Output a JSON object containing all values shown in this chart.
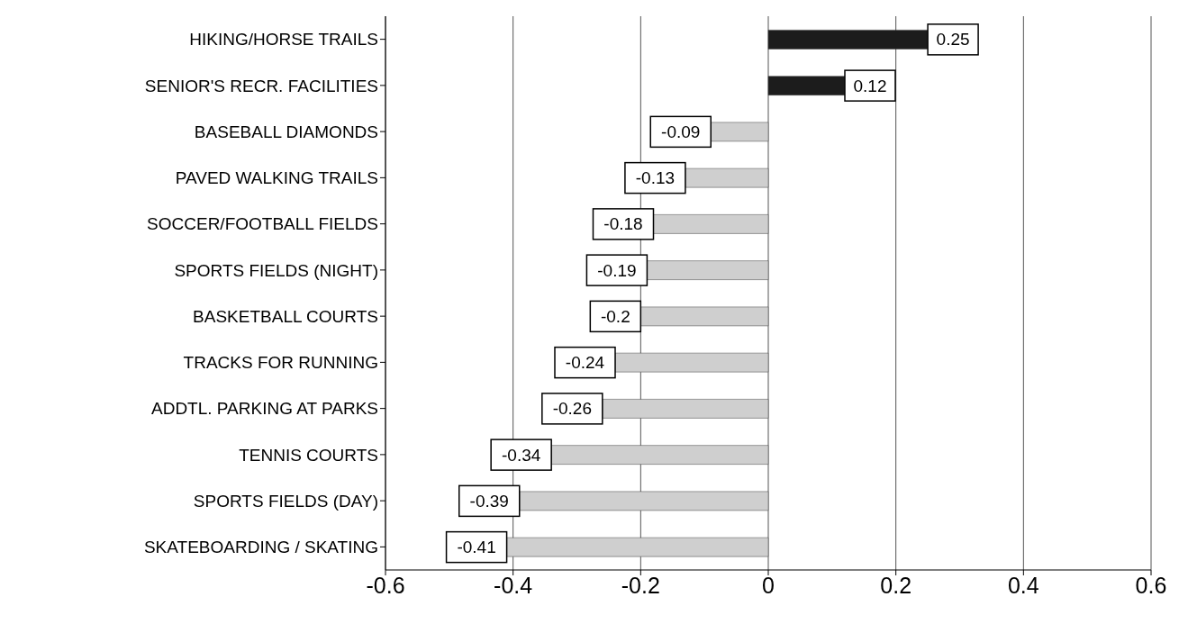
{
  "chart_data": {
    "type": "bar",
    "orientation": "horizontal",
    "categories": [
      "HIKING/HORSE TRAILS",
      "SENIOR'S RECR. FACILITIES",
      "BASEBALL DIAMONDS",
      "PAVED WALKING TRAILS",
      "SOCCER/FOOTBALL FIELDS",
      "SPORTS FIELDS (NIGHT)",
      "BASKETBALL COURTS",
      "TRACKS FOR RUNNING",
      "ADDTL. PARKING AT PARKS",
      "TENNIS COURTS",
      "SPORTS FIELDS (DAY)",
      "SKATEBOARDING / SKATING"
    ],
    "values": [
      0.25,
      0.12,
      -0.09,
      -0.13,
      -0.18,
      -0.19,
      -0.2,
      -0.24,
      -0.26,
      -0.34,
      -0.39,
      -0.41
    ],
    "colors": [
      "#1c1c1c",
      "#1c1c1c",
      "#cfcfcf",
      "#cfcfcf",
      "#cfcfcf",
      "#cfcfcf",
      "#cfcfcf",
      "#cfcfcf",
      "#cfcfcf",
      "#cfcfcf",
      "#cfcfcf",
      "#cfcfcf"
    ],
    "xlim": [
      -0.6,
      0.6
    ],
    "xticks": [
      -0.6,
      -0.4,
      -0.2,
      0,
      0.2,
      0.4,
      0.6
    ],
    "grid": "x",
    "data_labels": true,
    "legend": false
  }
}
